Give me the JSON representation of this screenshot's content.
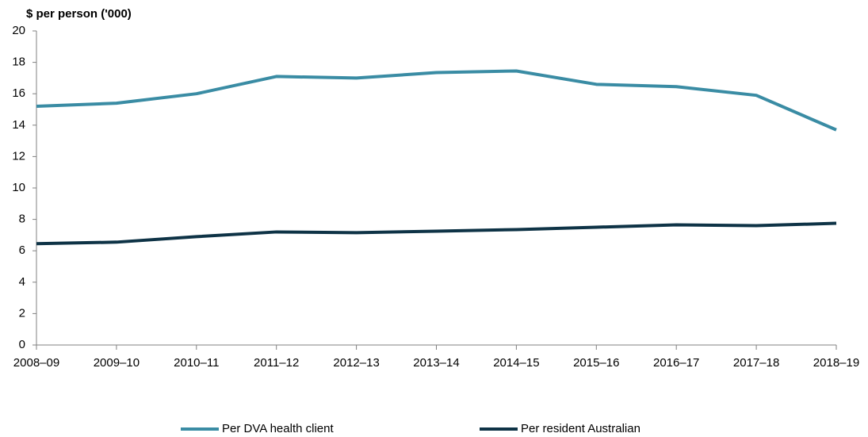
{
  "chart_data": {
    "type": "line",
    "y_label": "$ per person ('000)",
    "categories": [
      "2008–09",
      "2009–10",
      "2010–11",
      "2011–12",
      "2012–13",
      "2013–14",
      "2014–15",
      "2015–16",
      "2016–17",
      "2017–18",
      "2018–19"
    ],
    "series": [
      {
        "name": "Per DVA health client",
        "color": "#3a8ca4",
        "values": [
          15.2,
          15.4,
          16.0,
          17.1,
          17.0,
          17.35,
          17.45,
          16.6,
          16.45,
          15.9,
          13.7
        ]
      },
      {
        "name": "Per resident Australian",
        "color": "#0e3346",
        "values": [
          6.45,
          6.55,
          6.9,
          7.2,
          7.15,
          7.25,
          7.35,
          7.5,
          7.65,
          7.6,
          7.75
        ]
      }
    ],
    "ylim": [
      0,
      20
    ],
    "yticks": [
      0,
      2,
      4,
      6,
      8,
      10,
      12,
      14,
      16,
      18,
      20
    ],
    "legend": "bottom"
  }
}
